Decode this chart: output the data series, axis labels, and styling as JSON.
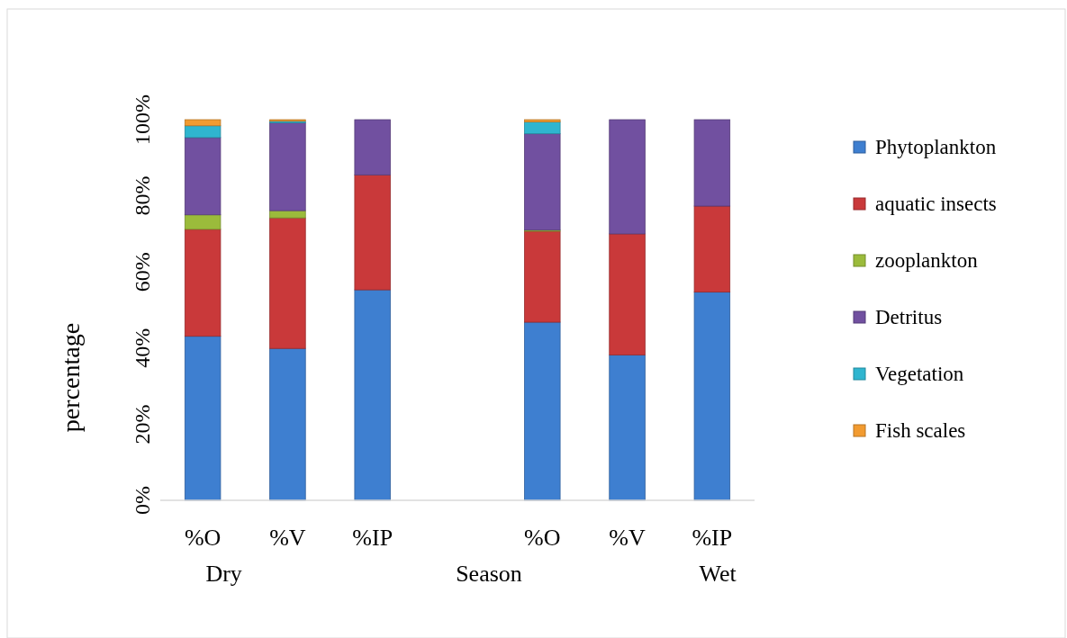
{
  "chart_data": {
    "type": "bar",
    "stacked": true,
    "ylabel": "percentage",
    "categories": [
      "%O",
      "%V",
      "%IP",
      null,
      "%O",
      "%V",
      "%IP"
    ],
    "series": [
      {
        "name": "Phytoplankton",
        "color": "#3e7fd0",
        "values": [
          43.1,
          39.9,
          55.3,
          null,
          46.8,
          38.2,
          54.7
        ]
      },
      {
        "name": "aquatic insects",
        "color": "#c9393a",
        "values": [
          28.1,
          34.3,
          30.2,
          null,
          23.9,
          31.8,
          22.6
        ]
      },
      {
        "name": "zooplankton",
        "color": "#9bbb3b",
        "values": [
          3.8,
          1.9,
          0,
          null,
          0.3,
          0,
          0
        ]
      },
      {
        "name": "Detritus",
        "color": "#7150a0",
        "values": [
          20.3,
          23.1,
          14.5,
          null,
          25.3,
          30.0,
          22.7
        ]
      },
      {
        "name": "Vegetation",
        "color": "#2fb5cf",
        "values": [
          3.1,
          0.4,
          0,
          null,
          3.1,
          0,
          0
        ]
      },
      {
        "name": "Fish scales",
        "color": "#f29b30",
        "values": [
          1.6,
          0.4,
          0,
          null,
          0.6,
          0,
          0
        ]
      }
    ],
    "ylim": [
      0,
      100
    ],
    "yticks": [
      {
        "value": 0,
        "label": "0%"
      },
      {
        "value": 20,
        "label": "20%"
      },
      {
        "value": 40,
        "label": "40%"
      },
      {
        "value": 60,
        "label": "60%"
      },
      {
        "value": 80,
        "label": "80%"
      },
      {
        "value": 100,
        "label": "100%"
      }
    ],
    "annotations": [
      "Dry",
      "Season",
      "Wet"
    ],
    "legend": "right",
    "grid": false
  }
}
